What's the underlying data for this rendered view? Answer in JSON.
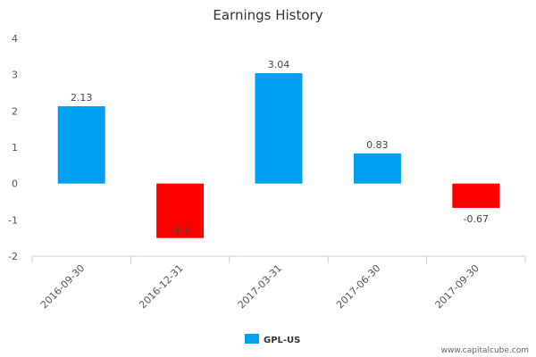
{
  "chart_data": {
    "type": "bar",
    "title": "Earnings History",
    "categories": [
      "2016-09-30",
      "2016-12-31",
      "2017-03-31",
      "2017-06-30",
      "2017-09-30"
    ],
    "series": [
      {
        "name": "GPL-US",
        "values": [
          2.13,
          -1.5,
          3.04,
          0.83,
          -0.67
        ]
      }
    ],
    "data_labels": [
      "2.13",
      "-1.5",
      "3.04",
      "0.83",
      "-0.67"
    ],
    "xlabel": "",
    "ylabel": "",
    "ylim": [
      -2,
      4
    ],
    "yticks": [
      "-2",
      "-1",
      "0",
      "1",
      "2",
      "3",
      "4"
    ],
    "grid": false,
    "legend_position": "bottom-center",
    "colors": {
      "positive": "#00a0f0",
      "negative": "#ff0000",
      "axis": "#c0d0e0",
      "legend": "#00a0f0"
    }
  },
  "watermark": "www.capitalcube.com"
}
